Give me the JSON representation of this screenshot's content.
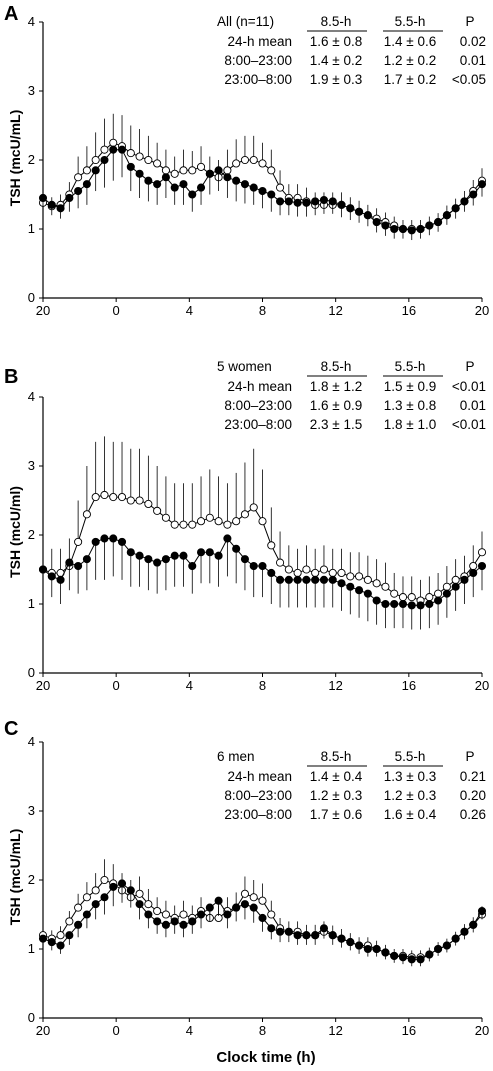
{
  "xlabel": "Clock time (h)",
  "chart_data": [
    {
      "type": "line",
      "panel": "A",
      "ylabel": "TSH (mcU/mL)",
      "ylim": [
        0,
        4
      ],
      "yticks": [
        "0",
        "1",
        "2",
        "3",
        "4"
      ],
      "xticks": [
        "20",
        "0",
        "4",
        "8",
        "12",
        "16",
        "20"
      ],
      "stats_table": {
        "header": [
          "All (n=11)",
          "8.5-h",
          "5.5-h",
          "P"
        ],
        "rows": [
          [
            "24-h mean",
            "1.6 ± 0.8",
            "1.4 ± 0.6",
            "0.02"
          ],
          [
            "8:00–23:00",
            "1.4 ± 0.2",
            "1.2 ± 0.2",
            "0.01"
          ],
          [
            "23:00–8:00",
            "1.9 ± 0.3",
            "1.7 ± 0.2",
            "<0.05"
          ]
        ]
      },
      "series": [
        {
          "name": "8.5-h",
          "marker": "open-circle",
          "values": [
            1.38,
            1.33,
            1.35,
            1.5,
            1.75,
            1.85,
            2.0,
            2.15,
            2.25,
            2.2,
            2.1,
            2.05,
            2.0,
            1.95,
            1.85,
            1.8,
            1.85,
            1.85,
            1.9,
            1.8,
            1.75,
            1.85,
            1.95,
            2.0,
            2.0,
            1.95,
            1.85,
            1.6,
            1.45,
            1.45,
            1.4,
            1.35,
            1.35,
            1.35,
            1.35,
            1.3,
            1.25,
            1.2,
            1.15,
            1.1,
            1.05,
            1.0,
            1.0,
            1.0,
            1.05,
            1.1,
            1.2,
            1.3,
            1.4,
            1.55,
            1.7
          ],
          "err": [
            0.13,
            0.13,
            0.15,
            0.18,
            0.3,
            0.35,
            0.4,
            0.45,
            0.42,
            0.45,
            0.4,
            0.4,
            0.35,
            0.3,
            0.3,
            0.25,
            0.3,
            0.28,
            0.3,
            0.25,
            0.25,
            0.3,
            0.35,
            0.35,
            0.35,
            0.3,
            0.3,
            0.25,
            0.2,
            0.2,
            0.2,
            0.18,
            0.18,
            0.18,
            0.18,
            0.16,
            0.16,
            0.15,
            0.15,
            0.14,
            0.13,
            0.13,
            0.13,
            0.13,
            0.13,
            0.13,
            0.14,
            0.14,
            0.15,
            0.16,
            0.18
          ]
        },
        {
          "name": "5.5-h",
          "marker": "filled-circle",
          "values": [
            1.45,
            1.35,
            1.3,
            1.45,
            1.55,
            1.65,
            1.85,
            2.0,
            2.15,
            2.15,
            1.9,
            1.8,
            1.7,
            1.65,
            1.75,
            1.6,
            1.65,
            1.5,
            1.6,
            1.8,
            1.85,
            1.75,
            1.7,
            1.65,
            1.6,
            1.55,
            1.5,
            1.4,
            1.4,
            1.38,
            1.38,
            1.4,
            1.42,
            1.4,
            1.35,
            1.3,
            1.25,
            1.2,
            1.1,
            1.05,
            1.0,
            1.0,
            0.98,
            1.0,
            1.05,
            1.1,
            1.2,
            1.3,
            1.4,
            1.5,
            1.65
          ],
          "err": [
            0.15,
            0.15,
            0.15,
            0.2,
            0.25,
            0.3,
            0.3,
            0.4,
            0.45,
            0.4,
            0.35,
            0.35,
            0.3,
            0.3,
            0.3,
            0.25,
            0.3,
            0.25,
            0.25,
            0.3,
            0.3,
            0.3,
            0.3,
            0.28,
            0.25,
            0.25,
            0.25,
            0.2,
            0.2,
            0.2,
            0.2,
            0.2,
            0.2,
            0.18,
            0.18,
            0.17,
            0.16,
            0.16,
            0.15,
            0.15,
            0.14,
            0.14,
            0.14,
            0.14,
            0.14,
            0.14,
            0.14,
            0.15,
            0.15,
            0.16,
            0.18
          ]
        }
      ]
    },
    {
      "type": "line",
      "panel": "B",
      "ylabel": "TSH (mcU/ml)",
      "ylim": [
        0,
        4
      ],
      "yticks": [
        "0",
        "1",
        "2",
        "3",
        "4"
      ],
      "xticks": [
        "20",
        "0",
        "4",
        "8",
        "12",
        "16",
        "20"
      ],
      "stats_table": {
        "header": [
          "5 women",
          "8.5-h",
          "5.5-h",
          "P"
        ],
        "rows": [
          [
            "24-h mean",
            "1.8 ± 1.2",
            "1.5 ± 0.9",
            "<0.01"
          ],
          [
            "8:00–23:00",
            "1.6 ± 0.9",
            "1.3 ± 0.8",
            "0.01"
          ],
          [
            "23:00–8:00",
            "2.3 ± 1.5",
            "1.8 ± 1.0",
            "<0.01"
          ]
        ]
      },
      "series": [
        {
          "name": "8.5-h",
          "marker": "open-circle",
          "values": [
            1.5,
            1.45,
            1.45,
            1.55,
            1.9,
            2.3,
            2.55,
            2.58,
            2.55,
            2.55,
            2.5,
            2.5,
            2.45,
            2.35,
            2.25,
            2.15,
            2.15,
            2.15,
            2.2,
            2.25,
            2.2,
            2.15,
            2.2,
            2.3,
            2.4,
            2.2,
            1.85,
            1.6,
            1.5,
            1.45,
            1.5,
            1.45,
            1.5,
            1.45,
            1.45,
            1.4,
            1.4,
            1.35,
            1.3,
            1.25,
            1.15,
            1.1,
            1.1,
            1.05,
            1.1,
            1.15,
            1.25,
            1.35,
            1.4,
            1.55,
            1.75
          ],
          "err": [
            0.3,
            0.35,
            0.35,
            0.4,
            0.6,
            0.7,
            0.8,
            0.85,
            0.8,
            0.8,
            0.75,
            0.75,
            0.7,
            0.65,
            0.6,
            0.6,
            0.6,
            0.6,
            0.65,
            0.7,
            0.65,
            0.6,
            0.7,
            0.75,
            0.85,
            0.75,
            0.55,
            0.45,
            0.35,
            0.35,
            0.35,
            0.35,
            0.35,
            0.35,
            0.35,
            0.35,
            0.35,
            0.35,
            0.35,
            0.35,
            0.3,
            0.3,
            0.3,
            0.3,
            0.3,
            0.3,
            0.3,
            0.3,
            0.3,
            0.3,
            0.3
          ]
        },
        {
          "name": "5.5-h",
          "marker": "filled-circle",
          "values": [
            1.5,
            1.4,
            1.35,
            1.6,
            1.55,
            1.65,
            1.9,
            1.95,
            1.95,
            1.9,
            1.75,
            1.7,
            1.65,
            1.6,
            1.65,
            1.7,
            1.7,
            1.55,
            1.75,
            1.75,
            1.7,
            1.95,
            1.8,
            1.65,
            1.55,
            1.55,
            1.45,
            1.35,
            1.35,
            1.35,
            1.35,
            1.35,
            1.35,
            1.35,
            1.3,
            1.25,
            1.2,
            1.15,
            1.05,
            1.0,
            1.0,
            1.0,
            0.98,
            0.98,
            1.0,
            1.05,
            1.15,
            1.25,
            1.35,
            1.45,
            1.55
          ],
          "err": [
            0.3,
            0.3,
            0.35,
            0.4,
            0.4,
            0.45,
            0.55,
            0.6,
            0.55,
            0.55,
            0.5,
            0.45,
            0.45,
            0.45,
            0.45,
            0.45,
            0.45,
            0.4,
            0.45,
            0.45,
            0.45,
            0.55,
            0.5,
            0.45,
            0.45,
            0.45,
            0.45,
            0.4,
            0.4,
            0.4,
            0.4,
            0.4,
            0.4,
            0.4,
            0.4,
            0.4,
            0.4,
            0.4,
            0.35,
            0.35,
            0.35,
            0.35,
            0.35,
            0.35,
            0.35,
            0.35,
            0.35,
            0.35,
            0.35,
            0.35,
            0.35
          ]
        }
      ]
    },
    {
      "type": "line",
      "panel": "C",
      "ylabel": "TSH (mcU/mL)",
      "ylim": [
        0,
        4
      ],
      "yticks": [
        "0",
        "1",
        "2",
        "3",
        "4"
      ],
      "xticks": [
        "20",
        "0",
        "4",
        "8",
        "12",
        "16",
        "20"
      ],
      "stats_table": {
        "header": [
          "6 men",
          "8.5-h",
          "5.5-h",
          "P"
        ],
        "rows": [
          [
            "24-h mean",
            "1.4 ± 0.4",
            "1.3 ± 0.3",
            "0.21"
          ],
          [
            "8:00–23:00",
            "1.2 ± 0.3",
            "1.2 ± 0.3",
            "0.20"
          ],
          [
            "23:00–8:00",
            "1.7 ± 0.6",
            "1.6 ± 0.4",
            "0.26"
          ]
        ]
      },
      "series": [
        {
          "name": "8.5-h",
          "marker": "open-circle",
          "values": [
            1.2,
            1.15,
            1.2,
            1.4,
            1.6,
            1.75,
            1.85,
            2.0,
            1.95,
            1.85,
            1.75,
            1.8,
            1.65,
            1.55,
            1.5,
            1.45,
            1.5,
            1.45,
            1.55,
            1.45,
            1.45,
            1.55,
            1.6,
            1.8,
            1.75,
            1.7,
            1.5,
            1.3,
            1.25,
            1.25,
            1.2,
            1.2,
            1.25,
            1.2,
            1.15,
            1.1,
            1.05,
            1.05,
            1.0,
            0.95,
            0.9,
            0.9,
            0.88,
            0.88,
            0.92,
            1.0,
            1.05,
            1.15,
            1.25,
            1.35,
            1.5
          ],
          "err": [
            0.12,
            0.12,
            0.13,
            0.15,
            0.2,
            0.22,
            0.25,
            0.3,
            0.28,
            0.25,
            0.25,
            0.25,
            0.22,
            0.2,
            0.2,
            0.18,
            0.2,
            0.18,
            0.2,
            0.18,
            0.18,
            0.2,
            0.22,
            0.25,
            0.25,
            0.25,
            0.2,
            0.15,
            0.15,
            0.15,
            0.15,
            0.15,
            0.15,
            0.14,
            0.14,
            0.13,
            0.12,
            0.12,
            0.12,
            0.11,
            0.1,
            0.1,
            0.1,
            0.1,
            0.1,
            0.1,
            0.1,
            0.1,
            0.11,
            0.11,
            0.12
          ]
        },
        {
          "name": "5.5-h",
          "marker": "filled-circle",
          "values": [
            1.15,
            1.1,
            1.05,
            1.2,
            1.35,
            1.5,
            1.65,
            1.75,
            1.9,
            1.95,
            1.85,
            1.65,
            1.5,
            1.4,
            1.35,
            1.4,
            1.35,
            1.4,
            1.5,
            1.6,
            1.7,
            1.5,
            1.6,
            1.65,
            1.6,
            1.45,
            1.3,
            1.25,
            1.25,
            1.2,
            1.2,
            1.2,
            1.3,
            1.2,
            1.15,
            1.1,
            1.05,
            1.0,
            1.0,
            0.95,
            0.9,
            0.88,
            0.85,
            0.85,
            0.92,
            1.0,
            1.05,
            1.15,
            1.25,
            1.35,
            1.55
          ],
          "err": [
            0.12,
            0.12,
            0.12,
            0.14,
            0.18,
            0.2,
            0.22,
            0.25,
            0.28,
            0.28,
            0.25,
            0.22,
            0.2,
            0.18,
            0.18,
            0.18,
            0.18,
            0.18,
            0.2,
            0.2,
            0.22,
            0.2,
            0.2,
            0.22,
            0.22,
            0.2,
            0.16,
            0.15,
            0.15,
            0.14,
            0.14,
            0.14,
            0.15,
            0.14,
            0.13,
            0.12,
            0.12,
            0.11,
            0.11,
            0.1,
            0.1,
            0.1,
            0.1,
            0.1,
            0.1,
            0.1,
            0.1,
            0.1,
            0.11,
            0.11,
            0.12
          ]
        }
      ]
    }
  ]
}
